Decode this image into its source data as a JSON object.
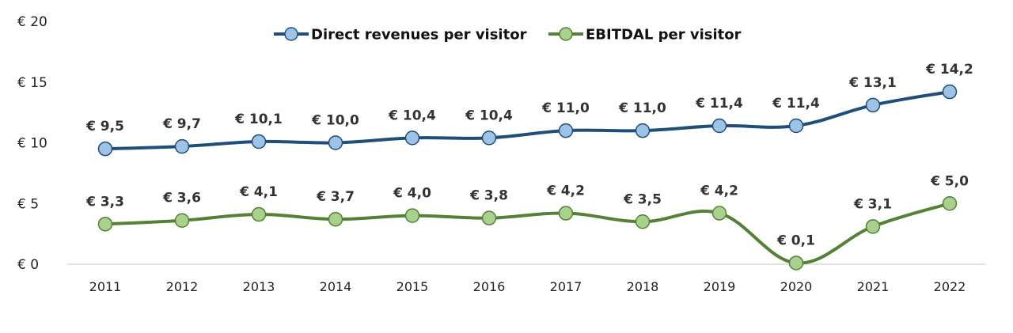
{
  "chart_data": {
    "type": "line",
    "title": "",
    "xlabel": "",
    "ylabel": "",
    "categories": [
      "2011",
      "2012",
      "2013",
      "2014",
      "2015",
      "2016",
      "2017",
      "2018",
      "2019",
      "2020",
      "2021",
      "2022"
    ],
    "ylim": [
      0,
      20
    ],
    "yticks": [
      0,
      5,
      10,
      15,
      20
    ],
    "ytick_labels": [
      "€ 0",
      "€ 5",
      "€ 10",
      "€ 15",
      "€ 20"
    ],
    "grid": false,
    "legend_position": "top-center",
    "series": [
      {
        "name": "Direct revenues per visitor",
        "color": "#1f4e79",
        "marker_fill": "#9dc3e6",
        "values": [
          9.5,
          9.7,
          10.1,
          10.0,
          10.4,
          10.4,
          11.0,
          11.0,
          11.4,
          11.4,
          13.1,
          14.2
        ],
        "labels": [
          "€ 9,5",
          "€ 9,7",
          "€ 10,1",
          "€ 10,0",
          "€ 10,4",
          "€ 10,4",
          "€ 11,0",
          "€ 11,0",
          "€ 11,4",
          "€ 11,4",
          "€ 13,1",
          "€ 14,2"
        ]
      },
      {
        "name": "EBITDAL per visitor",
        "color": "#548235",
        "marker_fill": "#a9d18e",
        "values": [
          3.3,
          3.6,
          4.1,
          3.7,
          4.0,
          3.8,
          4.2,
          3.5,
          4.2,
          0.1,
          3.1,
          5.0
        ],
        "labels": [
          "€ 3,3",
          "€ 3,6",
          "€ 4,1",
          "€ 3,7",
          "€ 4,0",
          "€ 3,8",
          "€ 4,2",
          "€ 3,5",
          "€ 4,2",
          "€ 0,1",
          "€ 3,1",
          "€ 5,0"
        ]
      }
    ]
  }
}
